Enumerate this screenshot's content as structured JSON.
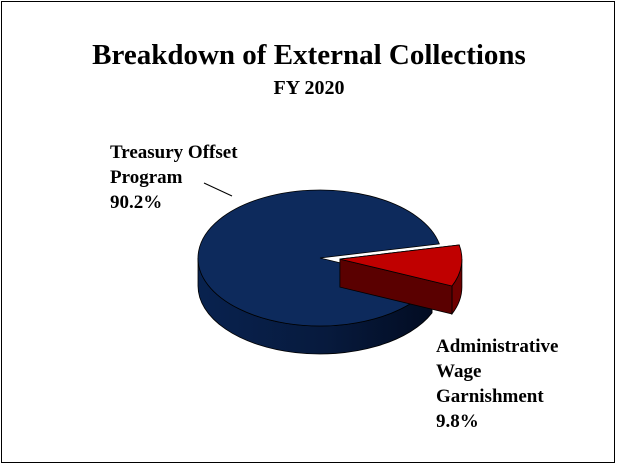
{
  "chart_data": {
    "type": "pie",
    "title": "Breakdown of External Collections",
    "subtitle": "FY 2020",
    "slices": [
      {
        "name_lines": [
          "Treasury Offset",
          "Program"
        ],
        "value": 90.2,
        "value_label": "90.2%",
        "color": "#0d2a5c",
        "side_color": "#071a3d",
        "exploded": false
      },
      {
        "name_lines": [
          "Administrative",
          "Wage",
          "Garnishment"
        ],
        "value": 9.8,
        "value_label": "9.8%",
        "color": "#c00000",
        "side_color": "#6e0000",
        "exploded": true
      }
    ],
    "style": "3d-exploded",
    "legend": "none"
  }
}
